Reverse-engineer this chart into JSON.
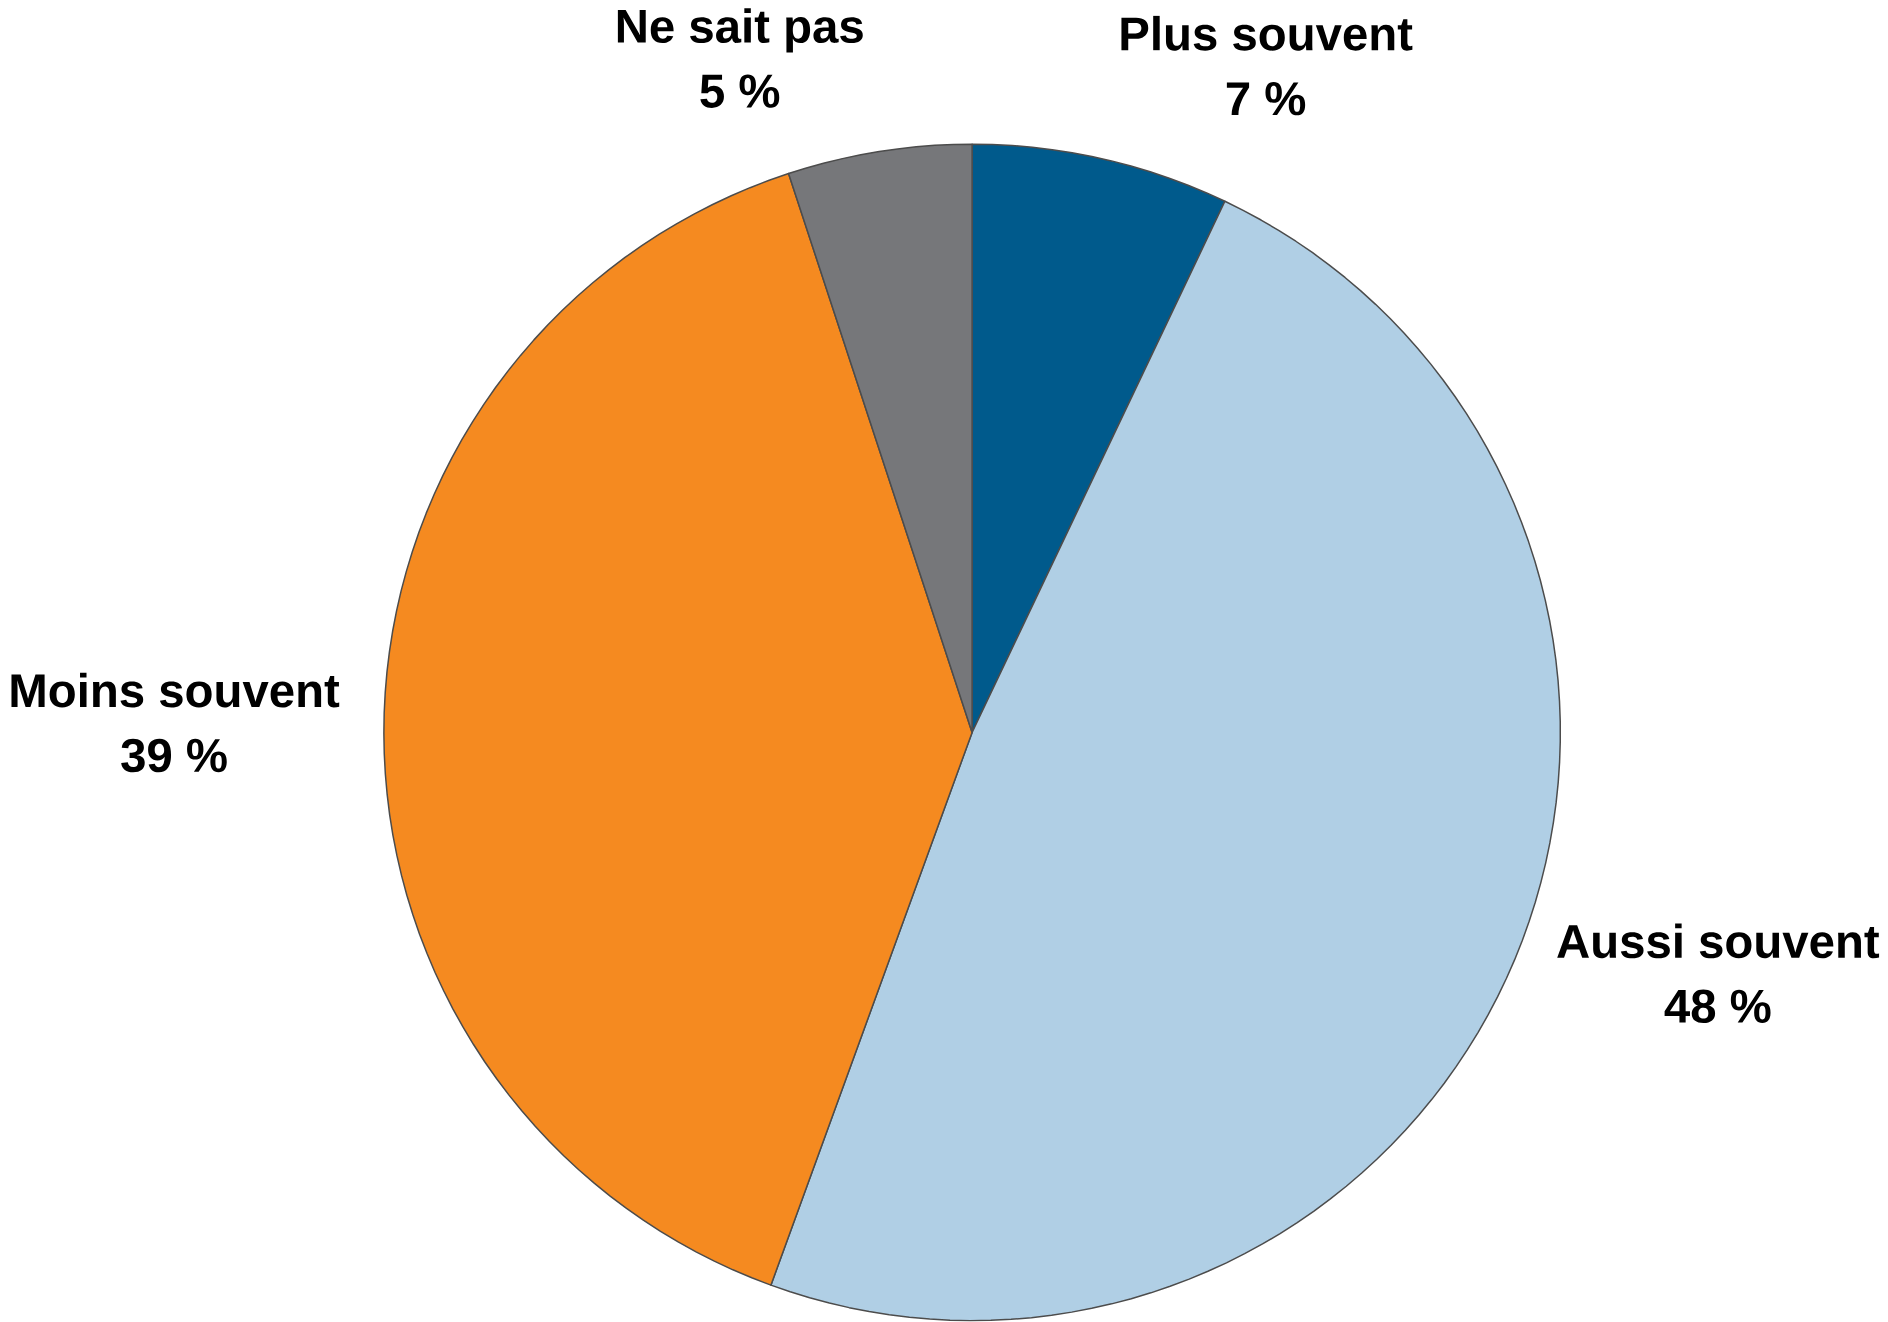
{
  "chart_data": {
    "type": "pie",
    "categories": [
      "Plus souvent",
      "Aussi souvent",
      "Moins souvent",
      "Ne sait pas"
    ],
    "values": [
      7,
      48,
      39,
      5
    ],
    "value_labels": [
      "7 %",
      "48 %",
      "39 %",
      "5 %"
    ],
    "colors": [
      "#005a8c",
      "#b0cfe5",
      "#f58a20",
      "#76777a"
    ]
  }
}
